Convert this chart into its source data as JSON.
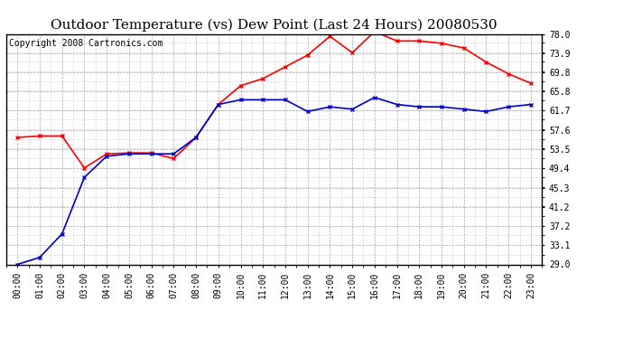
{
  "title": "Outdoor Temperature (vs) Dew Point (Last 24 Hours) 20080530",
  "copyright": "Copyright 2008 Cartronics.com",
  "x_labels": [
    "00:00",
    "01:00",
    "02:00",
    "03:00",
    "04:00",
    "05:00",
    "06:00",
    "07:00",
    "08:00",
    "09:00",
    "10:00",
    "11:00",
    "12:00",
    "13:00",
    "14:00",
    "15:00",
    "16:00",
    "17:00",
    "18:00",
    "19:00",
    "20:00",
    "21:00",
    "22:00",
    "23:00"
  ],
  "temp_values": [
    56.0,
    56.3,
    56.3,
    49.5,
    52.5,
    52.7,
    52.7,
    51.5,
    56.0,
    63.0,
    67.0,
    68.5,
    71.0,
    73.5,
    77.5,
    74.0,
    78.5,
    76.5,
    76.5,
    76.0,
    75.0,
    72.0,
    69.5,
    67.5
  ],
  "dew_values": [
    29.0,
    30.5,
    35.5,
    47.5,
    52.0,
    52.5,
    52.5,
    52.5,
    56.0,
    63.0,
    64.0,
    64.0,
    64.0,
    61.5,
    62.5,
    62.0,
    64.5,
    63.0,
    62.5,
    62.5,
    62.0,
    61.5,
    62.5,
    63.0
  ],
  "temp_color": "#ff0000",
  "dew_color": "#0000cc",
  "bg_color": "#ffffff",
  "plot_bg_color": "#ffffff",
  "grid_color": "#aaaaaa",
  "ylim_min": 29.0,
  "ylim_max": 78.0,
  "yticks": [
    29.0,
    33.1,
    37.2,
    41.2,
    45.3,
    49.4,
    53.5,
    57.6,
    61.7,
    65.8,
    69.8,
    73.9,
    78.0
  ],
  "title_fontsize": 11,
  "copyright_fontsize": 7,
  "tick_fontsize": 7,
  "marker": "x",
  "marker_size": 3,
  "line_width": 1.2
}
